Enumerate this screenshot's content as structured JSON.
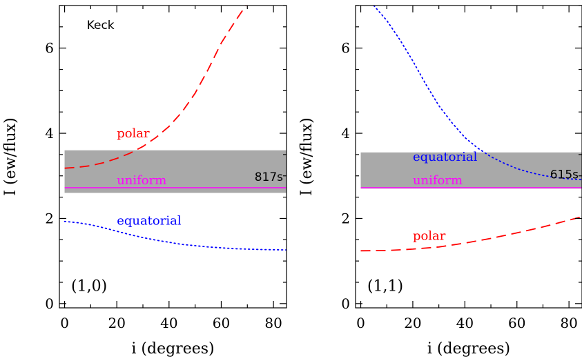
{
  "chart_data": [
    {
      "type": "line",
      "panel_label": "(1,0)",
      "telescope_label": "Keck",
      "xlabel": "i (degrees)",
      "ylabel": "I (ew/flux)",
      "xlim": [
        -2,
        85
      ],
      "ylim": [
        -0.1,
        7.0
      ],
      "xticks": [
        0,
        20,
        40,
        60,
        80
      ],
      "yticks": [
        0,
        2,
        4,
        6
      ],
      "band": {
        "y0": 2.6,
        "y1": 3.6,
        "color": "#a9a9a9",
        "label": "817s"
      },
      "series": [
        {
          "name": "polar",
          "style": "dashed",
          "color": "#ff0000",
          "x": [
            0,
            5,
            10,
            15,
            20,
            25,
            30,
            35,
            40,
            45,
            50,
            55,
            60,
            65,
            70
          ],
          "y": [
            3.18,
            3.2,
            3.24,
            3.31,
            3.41,
            3.53,
            3.69,
            3.9,
            4.16,
            4.5,
            4.94,
            5.5,
            6.12,
            6.6,
            7.05
          ]
        },
        {
          "name": "uniform",
          "style": "solid",
          "color": "#ff00ff",
          "x": [
            0,
            85
          ],
          "y": [
            2.72,
            2.72
          ]
        },
        {
          "name": "equatorial",
          "style": "dotted",
          "color": "#0000ff",
          "x": [
            0,
            5,
            10,
            15,
            20,
            25,
            30,
            35,
            40,
            45,
            50,
            55,
            60,
            65,
            70,
            75,
            80,
            85
          ],
          "y": [
            1.93,
            1.9,
            1.85,
            1.78,
            1.7,
            1.62,
            1.55,
            1.49,
            1.44,
            1.39,
            1.36,
            1.33,
            1.31,
            1.29,
            1.28,
            1.27,
            1.265,
            1.26
          ]
        }
      ],
      "labels": [
        {
          "text": "polar",
          "color": "#ff0000",
          "x": 20,
          "y": 3.9
        },
        {
          "text": "uniform",
          "color": "#ff00ff",
          "x": 20,
          "y": 2.8
        },
        {
          "text": "equatorial",
          "color": "#0000ff",
          "x": 20,
          "y": 1.85
        }
      ]
    },
    {
      "type": "line",
      "panel_label": "(1,1)",
      "xlabel": "i (degrees)",
      "ylabel": "I (ew/flux)",
      "xlim": [
        -2,
        85
      ],
      "ylim": [
        -0.1,
        7.0
      ],
      "xticks": [
        0,
        20,
        40,
        60,
        80
      ],
      "yticks": [
        0,
        2,
        4,
        6
      ],
      "band": {
        "y0": 2.7,
        "y1": 3.55,
        "color": "#a9a9a9",
        "label": "615s"
      },
      "series": [
        {
          "name": "equatorial",
          "style": "dotted",
          "color": "#0000ff",
          "x": [
            5,
            10,
            15,
            20,
            25,
            30,
            35,
            40,
            45,
            50,
            55,
            60,
            65,
            70,
            75,
            80,
            85
          ],
          "y": [
            7.0,
            6.65,
            6.2,
            5.7,
            5.15,
            4.65,
            4.25,
            3.9,
            3.65,
            3.45,
            3.3,
            3.17,
            3.08,
            3.01,
            2.96,
            2.93,
            2.91
          ]
        },
        {
          "name": "uniform",
          "style": "solid",
          "color": "#ff00ff",
          "x": [
            0,
            85
          ],
          "y": [
            2.72,
            2.72
          ]
        },
        {
          "name": "polar",
          "style": "dashed",
          "color": "#ff0000",
          "x": [
            0,
            10,
            20,
            30,
            40,
            50,
            60,
            70,
            80,
            85
          ],
          "y": [
            1.24,
            1.245,
            1.28,
            1.33,
            1.42,
            1.53,
            1.66,
            1.8,
            1.96,
            2.04
          ]
        }
      ],
      "labels": [
        {
          "text": "equatorial",
          "color": "#0000ff",
          "x": 20,
          "y": 3.35
        },
        {
          "text": "uniform",
          "color": "#ff00ff",
          "x": 20,
          "y": 2.8
        },
        {
          "text": "polar",
          "color": "#ff0000",
          "x": 20,
          "y": 1.5
        }
      ]
    }
  ]
}
